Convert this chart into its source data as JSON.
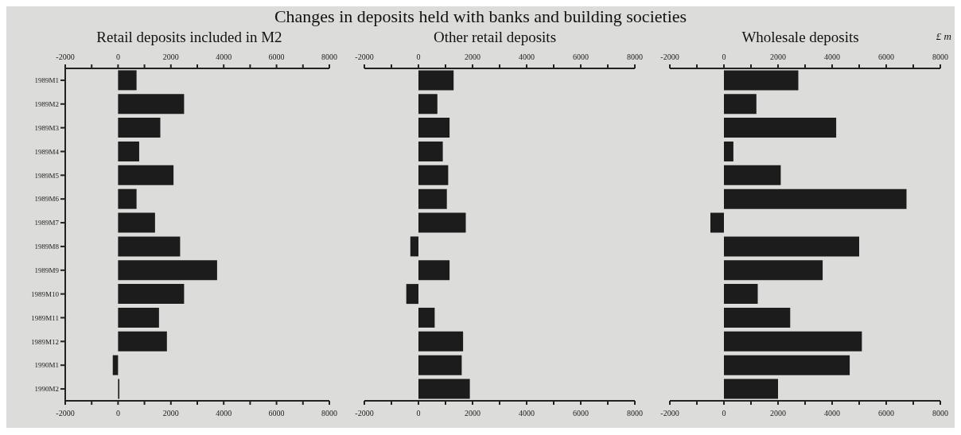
{
  "chart_data": [
    {
      "type": "bar",
      "orientation": "horizontal",
      "title": "Changes in deposits held with banks and building societies",
      "subtitle": "Retail deposits included in M2",
      "categories": [
        "1989M1",
        "1989M2",
        "1989M3",
        "1989M4",
        "1989M5",
        "1989M6",
        "1989M7",
        "1989M8",
        "1989M9",
        "1989M10",
        "1989M11",
        "1989M12",
        "1990M1",
        "1990M2"
      ],
      "values": [
        700,
        2500,
        1600,
        800,
        2100,
        700,
        1400,
        2350,
        3750,
        2500,
        1550,
        1850,
        -200,
        50
      ],
      "color": "#1c1c1c",
      "xlim": [
        -2000,
        8000
      ],
      "xticks": [
        -2000,
        {
          "value": -1000,
          "label": null
        },
        0,
        {
          "value": 1000,
          "label": null
        },
        2000,
        {
          "value": 3000,
          "label": null
        },
        4000,
        {
          "value": 5000,
          "label": null
        },
        6000,
        {
          "value": 7000,
          "label": null
        },
        8000
      ],
      "x2lim": [
        -2000,
        8000
      ],
      "x2ticks": [
        -2000,
        {
          "value": -1000,
          "label": null
        },
        0,
        {
          "value": 1000,
          "label": null
        },
        2000,
        {
          "value": 3000,
          "label": null
        },
        4000,
        {
          "value": 5000,
          "label": null
        },
        6000,
        {
          "value": 7000,
          "label": null
        },
        8000
      ]
    },
    {
      "type": "bar",
      "orientation": "horizontal",
      "subtitle": "Other retail deposits",
      "tick_labels": "x",
      "categories": [
        null,
        null,
        null,
        null,
        null,
        null,
        null,
        null,
        null,
        null,
        null,
        null,
        null,
        null
      ],
      "values": [
        1300,
        700,
        1150,
        900,
        1100,
        1050,
        1750,
        -300,
        1150,
        -450,
        600,
        1650,
        1600,
        1900
      ],
      "color": "#1c1c1c",
      "xlim": [
        -2000,
        8000
      ],
      "xticks": [
        -2000,
        {
          "value": -1000,
          "label": null
        },
        0,
        {
          "value": 1000,
          "label": null
        },
        2000,
        {
          "value": 3000,
          "label": null
        },
        4000,
        {
          "value": 5000,
          "label": null
        },
        6000,
        {
          "value": 7000,
          "label": null
        },
        8000
      ],
      "x2lim": [
        -2000,
        8000
      ],
      "x2ticks": [
        -2000,
        {
          "value": -1000,
          "label": null
        },
        0,
        {
          "value": 1000,
          "label": null
        },
        2000,
        {
          "value": 3000,
          "label": null
        },
        4000,
        {
          "value": 5000,
          "label": null
        },
        6000,
        {
          "value": 7000,
          "label": null
        },
        8000
      ]
    },
    {
      "type": "bar",
      "orientation": "horizontal",
      "subtitle": "Wholesale deposits",
      "tick_labels": "x",
      "annotations": [
        "£ m"
      ],
      "categories": [
        null,
        null,
        null,
        null,
        null,
        null,
        null,
        null,
        null,
        null,
        null,
        null,
        null,
        null
      ],
      "values": [
        2750,
        1200,
        4150,
        350,
        2100,
        6750,
        -500,
        5000,
        3650,
        1250,
        2450,
        5100,
        4650,
        2000
      ],
      "color": "#1c1c1c",
      "xlim": [
        -2000,
        8000
      ],
      "xticks": [
        -2000,
        {
          "value": -1000,
          "label": null
        },
        0,
        {
          "value": 1000,
          "label": null
        },
        2000,
        {
          "value": 3000,
          "label": null
        },
        4000,
        {
          "value": 5000,
          "label": null
        },
        6000,
        {
          "value": 7000,
          "label": null
        },
        8000
      ],
      "x2lim": [
        -2000,
        8000
      ],
      "x2ticks": [
        -2000,
        {
          "value": -1000,
          "label": null
        },
        0,
        {
          "value": 1000,
          "label": null
        },
        2000,
        {
          "value": 3000,
          "label": null
        },
        4000,
        {
          "value": 5000,
          "label": null
        },
        6000,
        {
          "value": 7000,
          "label": null
        },
        8000
      ]
    }
  ]
}
